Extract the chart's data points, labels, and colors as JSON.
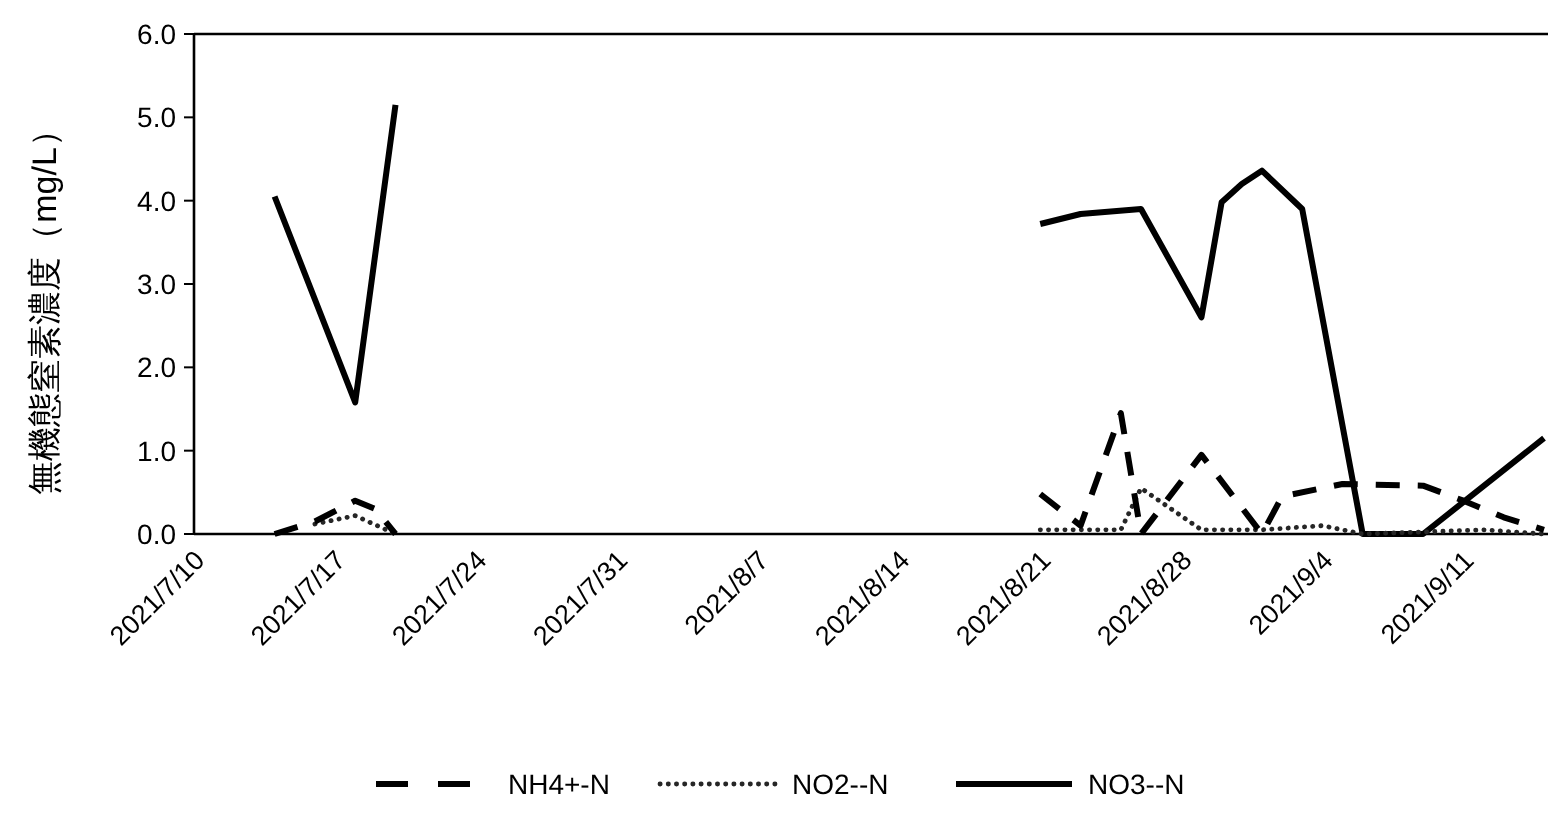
{
  "chart_data": {
    "type": "line",
    "ylabel": "無機態窒素濃度（mg/L）",
    "xlim": [
      "2021-07-10",
      "2021-09-15"
    ],
    "ylim": [
      0,
      6
    ],
    "xticks": [
      {
        "value": "2021-07-10",
        "label": "2021/7/10"
      },
      {
        "value": "2021-07-17",
        "label": "2021/7/17"
      },
      {
        "value": "2021-07-24",
        "label": "2021/7/24"
      },
      {
        "value": "2021-07-31",
        "label": "2021/7/31"
      },
      {
        "value": "2021-08-07",
        "label": "2021/8/7"
      },
      {
        "value": "2021-08-14",
        "label": "2021/8/14"
      },
      {
        "value": "2021-08-21",
        "label": "2021/8/21"
      },
      {
        "value": "2021-08-28",
        "label": "2021/8/28"
      },
      {
        "value": "2021-09-04",
        "label": "2021/9/4"
      },
      {
        "value": "2021-09-11",
        "label": "2021/9/11"
      }
    ],
    "yticks": [
      {
        "value": 0,
        "label": "0.0"
      },
      {
        "value": 1,
        "label": "1.0"
      },
      {
        "value": 2,
        "label": "2.0"
      },
      {
        "value": 3,
        "label": "3.0"
      },
      {
        "value": 4,
        "label": "4.0"
      },
      {
        "value": 5,
        "label": "5.0"
      },
      {
        "value": 6,
        "label": "6.0"
      }
    ],
    "grid": false,
    "legend": "bottom",
    "marker": "none",
    "series": [
      {
        "name": "NH4+-N",
        "color": "#000000",
        "line_style": "dashed",
        "x": [
          "2021-07-14",
          "2021-07-16",
          "2021-07-18",
          "2021-07-19",
          "2021-07-20",
          "2021-08-01",
          "2021-08-21",
          "2021-08-23",
          "2021-08-25",
          "2021-08-26",
          "2021-08-29",
          "2021-09-01",
          "2021-09-02",
          "2021-09-05",
          "2021-09-09",
          "2021-09-11",
          "2021-09-13",
          "2021-09-15"
        ],
        "values": [
          0.0,
          0.15,
          0.4,
          0.3,
          0.0,
          null,
          0.48,
          0.1,
          1.45,
          0.0,
          0.95,
          0.0,
          0.45,
          0.6,
          0.58,
          0.4,
          0.2,
          0.05
        ]
      },
      {
        "name": "NO2--N",
        "color": "#262626",
        "line_style": "dotted",
        "x": [
          "2021-07-16",
          "2021-07-18",
          "2021-07-20",
          "2021-08-01",
          "2021-08-21",
          "2021-08-25",
          "2021-08-26",
          "2021-08-29",
          "2021-09-01",
          "2021-09-04",
          "2021-09-06",
          "2021-09-12",
          "2021-09-15"
        ],
        "values": [
          0.12,
          0.22,
          0.0,
          null,
          0.05,
          0.05,
          0.55,
          0.05,
          0.05,
          0.1,
          0.0,
          0.05,
          0.0
        ]
      },
      {
        "name": "NO3--N",
        "color": "#000000",
        "line_style": "solid",
        "x": [
          "2021-07-14",
          "2021-07-18",
          "2021-07-20",
          "2021-08-01",
          "2021-08-21",
          "2021-08-23",
          "2021-08-26",
          "2021-08-29",
          "2021-08-30",
          "2021-08-31",
          "2021-09-01",
          "2021-09-03",
          "2021-09-06",
          "2021-09-09",
          "2021-09-15"
        ],
        "values": [
          4.05,
          1.58,
          5.15,
          null,
          3.72,
          3.84,
          3.9,
          2.6,
          3.98,
          4.2,
          4.36,
          3.9,
          0.0,
          0.0,
          1.15
        ]
      }
    ]
  }
}
